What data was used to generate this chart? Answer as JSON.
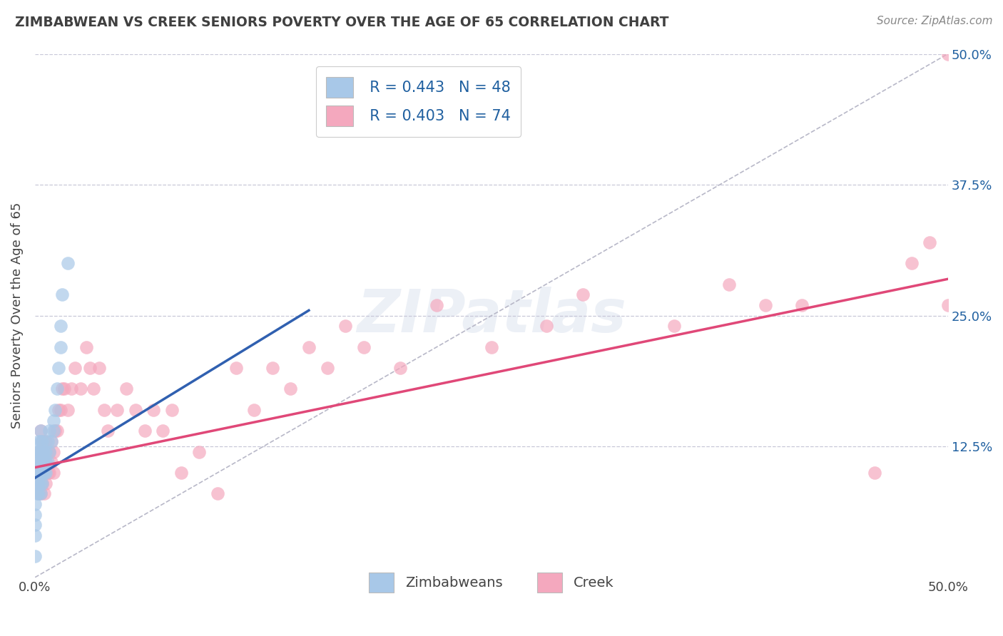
{
  "title": "ZIMBABWEAN VS CREEK SENIORS POVERTY OVER THE AGE OF 65 CORRELATION CHART",
  "source": "Source: ZipAtlas.com",
  "ylabel": "Seniors Poverty Over the Age of 65",
  "legend_blue_r": "R = 0.443",
  "legend_blue_n": "N = 48",
  "legend_pink_r": "R = 0.403",
  "legend_pink_n": "N = 74",
  "legend_label_blue": "Zimbabweans",
  "legend_label_pink": "Creek",
  "blue_scatter_x": [
    0.001,
    0.001,
    0.001,
    0.001,
    0.001,
    0.002,
    0.002,
    0.002,
    0.002,
    0.002,
    0.002,
    0.003,
    0.003,
    0.003,
    0.003,
    0.003,
    0.003,
    0.003,
    0.004,
    0.004,
    0.004,
    0.004,
    0.004,
    0.005,
    0.005,
    0.005,
    0.006,
    0.006,
    0.006,
    0.007,
    0.007,
    0.008,
    0.008,
    0.009,
    0.01,
    0.01,
    0.011,
    0.012,
    0.013,
    0.014,
    0.014,
    0.015,
    0.018,
    0.0,
    0.0,
    0.0,
    0.0,
    0.0
  ],
  "blue_scatter_y": [
    0.08,
    0.09,
    0.1,
    0.11,
    0.12,
    0.08,
    0.09,
    0.1,
    0.11,
    0.12,
    0.13,
    0.08,
    0.09,
    0.1,
    0.11,
    0.12,
    0.13,
    0.14,
    0.09,
    0.1,
    0.11,
    0.12,
    0.13,
    0.1,
    0.11,
    0.12,
    0.1,
    0.11,
    0.12,
    0.11,
    0.13,
    0.12,
    0.14,
    0.13,
    0.14,
    0.15,
    0.16,
    0.18,
    0.2,
    0.22,
    0.24,
    0.27,
    0.3,
    0.05,
    0.06,
    0.07,
    0.02,
    0.04
  ],
  "pink_scatter_x": [
    0.001,
    0.001,
    0.002,
    0.002,
    0.002,
    0.003,
    0.003,
    0.003,
    0.003,
    0.004,
    0.004,
    0.004,
    0.005,
    0.005,
    0.005,
    0.006,
    0.006,
    0.006,
    0.007,
    0.007,
    0.008,
    0.008,
    0.009,
    0.009,
    0.01,
    0.01,
    0.011,
    0.012,
    0.013,
    0.014,
    0.015,
    0.016,
    0.018,
    0.02,
    0.022,
    0.025,
    0.028,
    0.03,
    0.032,
    0.035,
    0.038,
    0.04,
    0.045,
    0.05,
    0.055,
    0.06,
    0.065,
    0.07,
    0.075,
    0.08,
    0.09,
    0.1,
    0.11,
    0.12,
    0.13,
    0.14,
    0.15,
    0.16,
    0.17,
    0.18,
    0.2,
    0.22,
    0.25,
    0.28,
    0.3,
    0.35,
    0.38,
    0.4,
    0.42,
    0.46,
    0.48,
    0.49,
    0.5,
    0.5
  ],
  "pink_scatter_y": [
    0.09,
    0.11,
    0.08,
    0.1,
    0.12,
    0.08,
    0.1,
    0.12,
    0.14,
    0.09,
    0.11,
    0.13,
    0.08,
    0.11,
    0.13,
    0.09,
    0.11,
    0.13,
    0.1,
    0.12,
    0.1,
    0.12,
    0.11,
    0.13,
    0.1,
    0.12,
    0.14,
    0.14,
    0.16,
    0.16,
    0.18,
    0.18,
    0.16,
    0.18,
    0.2,
    0.18,
    0.22,
    0.2,
    0.18,
    0.2,
    0.16,
    0.14,
    0.16,
    0.18,
    0.16,
    0.14,
    0.16,
    0.14,
    0.16,
    0.1,
    0.12,
    0.08,
    0.2,
    0.16,
    0.2,
    0.18,
    0.22,
    0.2,
    0.24,
    0.22,
    0.2,
    0.26,
    0.22,
    0.24,
    0.27,
    0.24,
    0.28,
    0.26,
    0.26,
    0.1,
    0.3,
    0.32,
    0.5,
    0.26
  ],
  "blue_color": "#a8c8e8",
  "pink_color": "#f4a8be",
  "blue_line_color": "#3060b0",
  "pink_line_color": "#e04878",
  "diagonal_color": "#b8b8c8",
  "grid_color": "#c8c8d8",
  "xlim": [
    0.0,
    0.5
  ],
  "ylim": [
    0.0,
    0.5
  ],
  "background_color": "#ffffff",
  "title_color": "#404040",
  "source_color": "#888888",
  "blue_line_x0": 0.0,
  "blue_line_y0": 0.095,
  "blue_line_x1": 0.15,
  "blue_line_y1": 0.255,
  "pink_line_x0": 0.0,
  "pink_line_y0": 0.105,
  "pink_line_x1": 0.5,
  "pink_line_y1": 0.285
}
